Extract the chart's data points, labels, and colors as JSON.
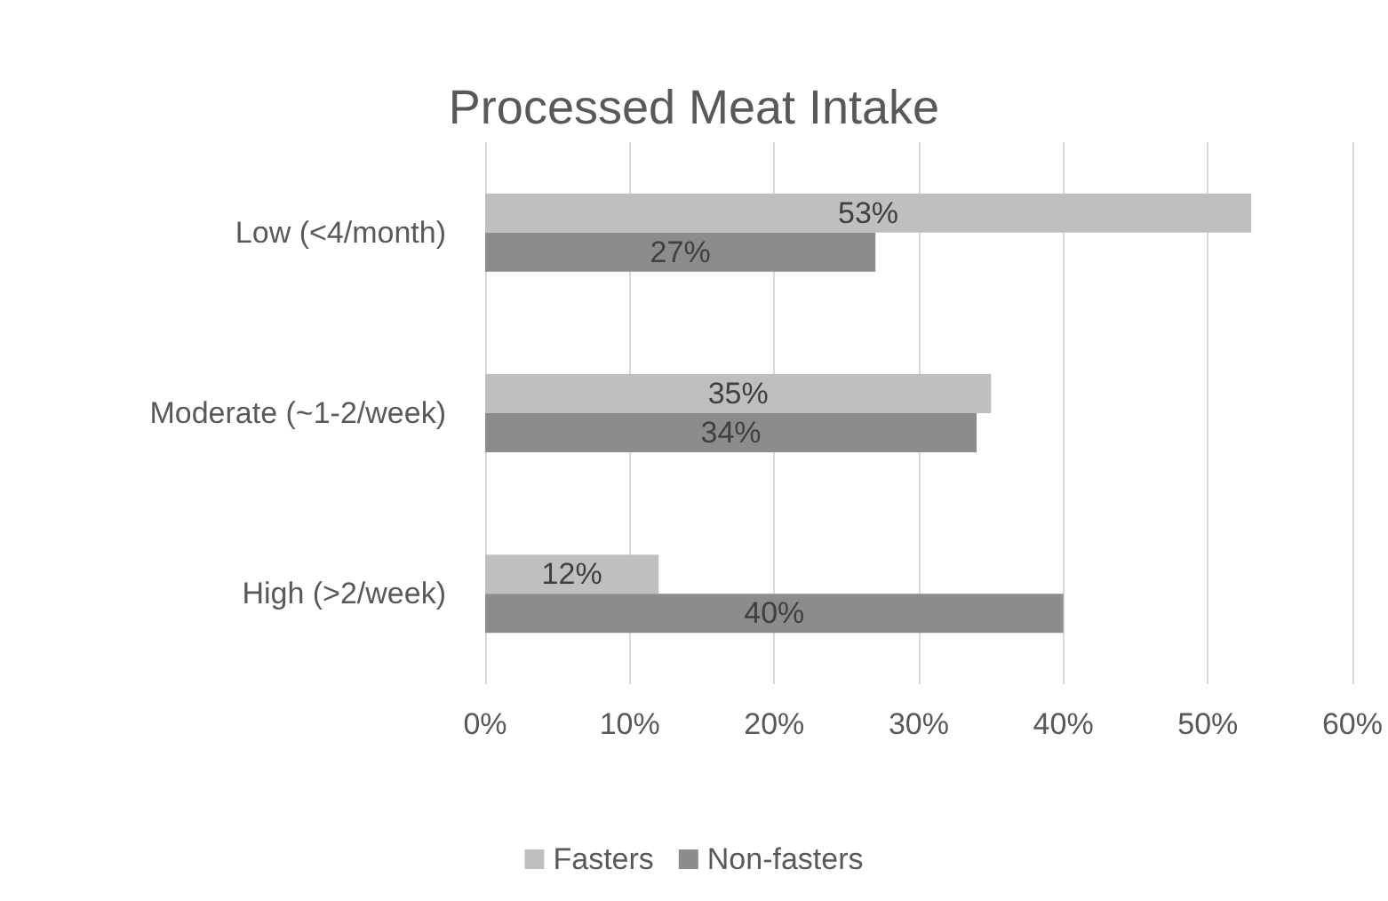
{
  "chart_data": {
    "type": "bar",
    "orientation": "horizontal",
    "title": "Processed Meat Intake",
    "categories": [
      "Low (<4/month)",
      "Moderate (~1-2/week)",
      "High (>2/week)"
    ],
    "series": [
      {
        "name": "Fasters",
        "color": "#bfbfbf",
        "values": [
          53,
          35,
          12
        ],
        "value_labels": [
          "53%",
          "35%",
          "12%"
        ]
      },
      {
        "name": "Non-fasters",
        "color": "#8c8c8c",
        "values": [
          27,
          34,
          40
        ],
        "value_labels": [
          "27%",
          "34%",
          "40%"
        ]
      }
    ],
    "xlim": [
      0,
      60
    ],
    "xticks": [
      {
        "value": 0,
        "label": "0%"
      },
      {
        "value": 10,
        "label": "10%"
      },
      {
        "value": 20,
        "label": "20%"
      },
      {
        "value": 30,
        "label": "30%"
      },
      {
        "value": 40,
        "label": "40%"
      },
      {
        "value": 50,
        "label": "50%"
      },
      {
        "value": 60,
        "label": "60%"
      }
    ],
    "grid": "x",
    "legend": "bottom"
  }
}
